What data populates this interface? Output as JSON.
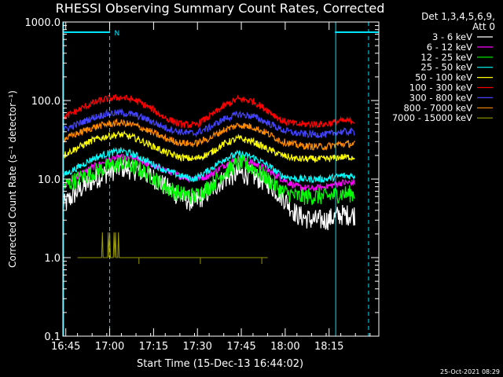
{
  "chart_data": {
    "type": "line",
    "title": "RHESSI Observing Summary Count Rates, Corrected",
    "xlabel": "Start Time (15-Dec-13 16:44:02)",
    "ylabel": "Corrected Count Rate (s⁻¹ detector⁻¹)",
    "x_units": "minutes after 16:44:02 UT",
    "xlim": [
      0,
      108
    ],
    "ylim": [
      0.1,
      1000
    ],
    "yscale": "log",
    "x_ticks": [
      {
        "label": "16:45",
        "value": 1
      },
      {
        "label": "17:00",
        "value": 16
      },
      {
        "label": "17:15",
        "value": 31
      },
      {
        "label": "17:30",
        "value": 46
      },
      {
        "label": "17:45",
        "value": 61
      },
      {
        "label": "18:00",
        "value": 76
      },
      {
        "label": "18:15",
        "value": 91
      }
    ],
    "y_ticks": [
      {
        "label": "1000.0",
        "value": 1000
      },
      {
        "label": "100.0",
        "value": 100
      },
      {
        "label": "10.0",
        "value": 10
      },
      {
        "label": "1.0",
        "value": 1
      },
      {
        "label": "0.1",
        "value": 0.1
      }
    ],
    "legend": {
      "header_line1": "Det 1,3,4,5,6,9,",
      "header_line2": "Att 0",
      "position": "top-right"
    },
    "series": [
      {
        "name": "3 - 6 keV",
        "color": "#ffffff",
        "x": [
          0,
          5,
          10,
          15,
          20,
          25,
          30,
          35,
          40,
          45,
          50,
          55,
          60,
          65,
          70,
          75,
          80,
          85,
          90,
          95
        ],
        "values": [
          4.5,
          7,
          9.5,
          12,
          14,
          13,
          11,
          8,
          6,
          5,
          7,
          10,
          12,
          11,
          9,
          6,
          3.5,
          3,
          3,
          3.5
        ]
      },
      {
        "name": "6 - 12 keV",
        "color": "#ff00ff",
        "x": [
          0,
          5,
          10,
          15,
          20,
          25,
          30,
          35,
          40,
          45,
          50,
          55,
          60,
          65,
          70,
          75,
          80,
          85,
          90,
          95
        ],
        "values": [
          8,
          11,
          14,
          17,
          19,
          18,
          15,
          13,
          11,
          10,
          11,
          15,
          18,
          16,
          13,
          10,
          8,
          7.5,
          8,
          9
        ]
      },
      {
        "name": "12 - 25 keV",
        "color": "#00ff00",
        "x": [
          0,
          5,
          10,
          15,
          20,
          25,
          30,
          35,
          40,
          45,
          50,
          55,
          60,
          65,
          70,
          75,
          80,
          85,
          90,
          95
        ],
        "values": [
          8,
          10,
          12,
          14,
          16,
          14,
          11,
          8,
          6.5,
          6,
          8,
          12,
          16,
          14,
          10,
          7,
          6,
          6,
          6,
          6.5
        ]
      },
      {
        "name": "25 - 50 keV",
        "color": "#00ffff",
        "x": [
          0,
          5,
          10,
          15,
          20,
          25,
          30,
          35,
          40,
          45,
          50,
          55,
          60,
          65,
          70,
          75,
          80,
          85,
          90,
          95
        ],
        "values": [
          11,
          14,
          18,
          21,
          23,
          20,
          16,
          13,
          11,
          10,
          13,
          18,
          21,
          19,
          15,
          11,
          10,
          10,
          10,
          11
        ]
      },
      {
        "name": "50 - 100 keV",
        "color": "#ffff00",
        "x": [
          0,
          5,
          10,
          15,
          20,
          25,
          30,
          35,
          40,
          45,
          50,
          55,
          60,
          65,
          70,
          75,
          80,
          85,
          90,
          95
        ],
        "values": [
          20,
          25,
          31,
          35,
          37,
          33,
          27,
          22,
          19,
          18,
          21,
          28,
          33,
          30,
          24,
          20,
          18,
          18,
          18,
          19
        ]
      },
      {
        "name": "100 - 300 keV",
        "color": "#ff0000",
        "x": [
          0,
          5,
          10,
          15,
          20,
          25,
          30,
          35,
          40,
          45,
          50,
          55,
          60,
          65,
          70,
          75,
          80,
          85,
          90,
          95
        ],
        "values": [
          60,
          75,
          92,
          105,
          110,
          100,
          80,
          60,
          50,
          48,
          62,
          85,
          105,
          98,
          75,
          55,
          50,
          50,
          50,
          55
        ]
      },
      {
        "name": "300 - 800 keV",
        "color": "#4444ff",
        "x": [
          0,
          5,
          10,
          15,
          20,
          25,
          30,
          35,
          40,
          45,
          50,
          55,
          60,
          65,
          70,
          75,
          80,
          85,
          90,
          95
        ],
        "values": [
          42,
          50,
          60,
          68,
          70,
          65,
          55,
          45,
          40,
          38,
          45,
          58,
          67,
          63,
          52,
          42,
          38,
          37,
          37,
          40
        ]
      },
      {
        "name": "800 - 7000 keV",
        "color": "#ff8c00",
        "x": [
          0,
          5,
          10,
          15,
          20,
          25,
          30,
          35,
          40,
          45,
          50,
          55,
          60,
          65,
          70,
          75,
          80,
          85,
          90,
          95
        ],
        "values": [
          32,
          38,
          45,
          50,
          52,
          48,
          40,
          33,
          29,
          28,
          33,
          42,
          49,
          46,
          38,
          30,
          27,
          26,
          26,
          28
        ]
      },
      {
        "name": "7000 - 15000 keV",
        "color": "#999900",
        "x": [
          5,
          10,
          13,
          13.5,
          15,
          15.5,
          16,
          17,
          17.5,
          18,
          18.5,
          19,
          19.5,
          22,
          30,
          45,
          55,
          60,
          65,
          70
        ],
        "values": [
          1,
          1,
          1,
          2.1,
          1,
          2.1,
          2.1,
          1,
          2.1,
          2.1,
          1,
          2.1,
          1,
          1,
          1,
          1,
          1,
          1,
          1,
          1
        ]
      }
    ],
    "annotations": {
      "night_intervals": [
        [
          0,
          16
        ],
        [
          93,
          108
        ]
      ],
      "night_label": "N",
      "saa_markers": [
        16,
        93
      ],
      "attenuator_edges": [
        0,
        93
      ]
    }
  },
  "timestamp": "25-Oct-2021 08:29"
}
